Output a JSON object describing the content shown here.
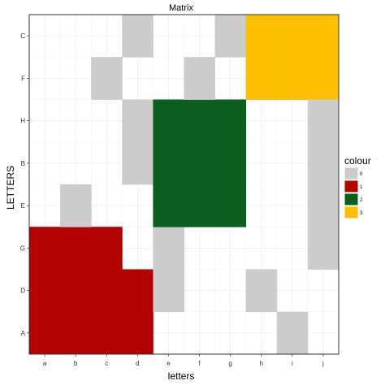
{
  "chart_data": {
    "type": "heatmap",
    "title": "Matrix",
    "xlabel": "letters",
    "ylabel": "LETTERS",
    "x_categories": [
      "a",
      "b",
      "c",
      "d",
      "e",
      "f",
      "g",
      "h",
      "i",
      "j"
    ],
    "y_categories": [
      "A",
      "D",
      "G",
      "E",
      "B",
      "H",
      "F",
      "C"
    ],
    "grid": true,
    "legend": {
      "title": "colour",
      "placement": "right",
      "entries": [
        {
          "value": "0",
          "color": "#cccccc"
        },
        {
          "value": "1",
          "color": "#b30000"
        },
        {
          "value": "2",
          "color": "#0b5e20"
        },
        {
          "value": "3",
          "color": "#fbbf00"
        }
      ]
    },
    "cells": [
      {
        "x": "a",
        "y": "A",
        "value": 1
      },
      {
        "x": "a",
        "y": "D",
        "value": 1
      },
      {
        "x": "a",
        "y": "G",
        "value": 1
      },
      {
        "x": "b",
        "y": "A",
        "value": 1
      },
      {
        "x": "b",
        "y": "D",
        "value": 1
      },
      {
        "x": "b",
        "y": "G",
        "value": 1
      },
      {
        "x": "c",
        "y": "A",
        "value": 1
      },
      {
        "x": "c",
        "y": "D",
        "value": 1
      },
      {
        "x": "c",
        "y": "G",
        "value": 1
      },
      {
        "x": "d",
        "y": "A",
        "value": 1
      },
      {
        "x": "d",
        "y": "D",
        "value": 1
      },
      {
        "x": "b",
        "y": "E",
        "value": 0
      },
      {
        "x": "c",
        "y": "F",
        "value": 0
      },
      {
        "x": "d",
        "y": "C",
        "value": 0
      },
      {
        "x": "d",
        "y": "H",
        "value": 0
      },
      {
        "x": "d",
        "y": "B",
        "value": 0
      },
      {
        "x": "e",
        "y": "G",
        "value": 0
      },
      {
        "x": "e",
        "y": "D",
        "value": 0
      },
      {
        "x": "e",
        "y": "H",
        "value": 2
      },
      {
        "x": "e",
        "y": "B",
        "value": 2
      },
      {
        "x": "e",
        "y": "E",
        "value": 2
      },
      {
        "x": "f",
        "y": "H",
        "value": 2
      },
      {
        "x": "f",
        "y": "B",
        "value": 2
      },
      {
        "x": "f",
        "y": "E",
        "value": 2
      },
      {
        "x": "g",
        "y": "H",
        "value": 2
      },
      {
        "x": "g",
        "y": "B",
        "value": 2
      },
      {
        "x": "g",
        "y": "E",
        "value": 2
      },
      {
        "x": "f",
        "y": "F",
        "value": 0
      },
      {
        "x": "g",
        "y": "C",
        "value": 0
      },
      {
        "x": "h",
        "y": "C",
        "value": 3
      },
      {
        "x": "i",
        "y": "C",
        "value": 3
      },
      {
        "x": "j",
        "y": "C",
        "value": 3
      },
      {
        "x": "h",
        "y": "F",
        "value": 3
      },
      {
        "x": "i",
        "y": "F",
        "value": 3
      },
      {
        "x": "j",
        "y": "F",
        "value": 3
      },
      {
        "x": "h",
        "y": "D",
        "value": 0
      },
      {
        "x": "i",
        "y": "A",
        "value": 0
      },
      {
        "x": "j",
        "y": "H",
        "value": 0
      },
      {
        "x": "j",
        "y": "B",
        "value": 0
      },
      {
        "x": "j",
        "y": "E",
        "value": 0
      },
      {
        "x": "j",
        "y": "G",
        "value": 0
      }
    ]
  }
}
